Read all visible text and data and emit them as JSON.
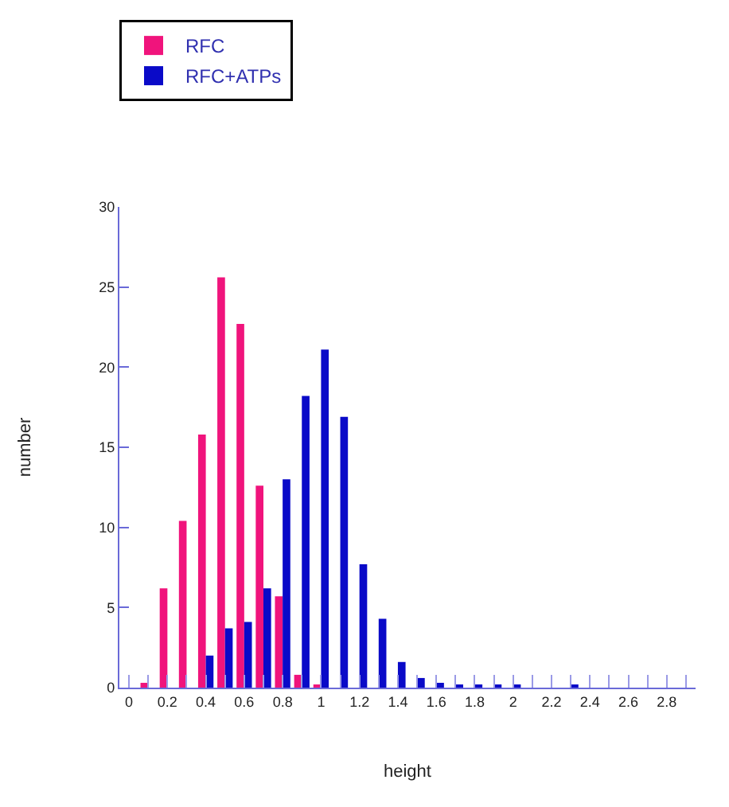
{
  "chart_data": {
    "type": "bar",
    "xlabel": "height",
    "ylabel": "number",
    "x": [
      0.1,
      0.2,
      0.3,
      0.4,
      0.5,
      0.6,
      0.7,
      0.8,
      0.9,
      1.0,
      1.1,
      1.2,
      1.3,
      1.4,
      1.5,
      1.6,
      1.7,
      1.8,
      1.9,
      2.0,
      2.1,
      2.2,
      2.3
    ],
    "series": [
      {
        "name": "RFC",
        "color": "#f0147c",
        "values": [
          0.3,
          6.2,
          10.4,
          15.8,
          25.6,
          22.7,
          12.6,
          5.7,
          0.8,
          0.2,
          null,
          null,
          null,
          null,
          null,
          null,
          null,
          null,
          null,
          null,
          null,
          null,
          null
        ]
      },
      {
        "name": "RFC+ATPs",
        "color": "#0a0ac8",
        "values": [
          null,
          null,
          null,
          2.0,
          3.7,
          4.1,
          6.2,
          13.0,
          18.2,
          21.1,
          16.9,
          7.7,
          4.3,
          1.6,
          0.6,
          0.3,
          0.1,
          0.2,
          0.1,
          0.1,
          null,
          null,
          0.1
        ]
      }
    ],
    "xlim": [
      -0.05,
      2.95
    ],
    "xticks": [
      0,
      {
        "value": 0.1,
        "label": null
      },
      0.2,
      {
        "value": 0.3,
        "label": null
      },
      0.4,
      {
        "value": 0.5,
        "label": null
      },
      0.6,
      {
        "value": 0.7,
        "label": null
      },
      0.8,
      {
        "value": 0.9,
        "label": null
      },
      1,
      {
        "value": 1.1,
        "label": null
      },
      1.2,
      {
        "value": 1.3,
        "label": null
      },
      1.4,
      {
        "value": 1.5,
        "label": null
      },
      1.6,
      {
        "value": 1.7,
        "label": null
      },
      1.8,
      {
        "value": 1.9,
        "label": null
      },
      2,
      {
        "value": 2.1,
        "label": null
      },
      2.2,
      {
        "value": 2.3,
        "label": null
      },
      2.4,
      {
        "value": 2.5,
        "label": null
      },
      2.6,
      {
        "value": 2.7,
        "label": null
      },
      2.8,
      {
        "value": 2.9,
        "label": null
      }
    ],
    "ylim": [
      0,
      30
    ],
    "yticks": [
      0,
      5,
      10,
      15,
      20,
      25,
      30
    ],
    "grid": false,
    "legend": "top left"
  }
}
